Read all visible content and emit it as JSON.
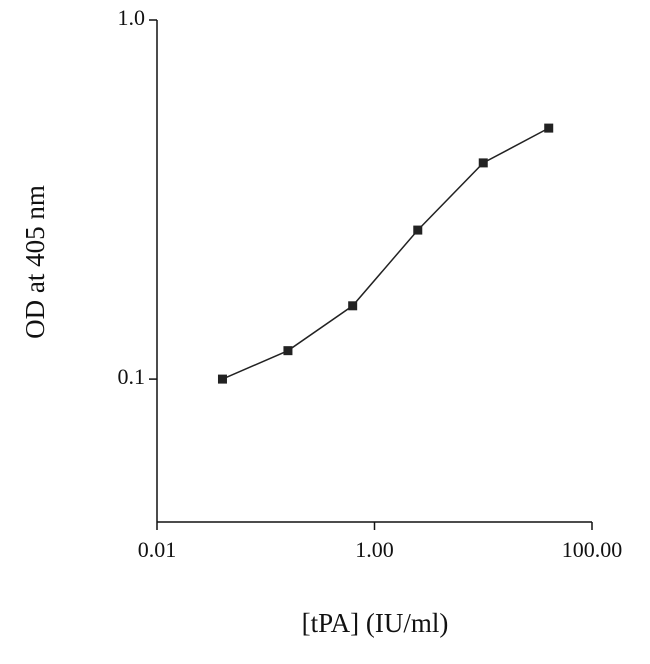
{
  "chart_data": {
    "type": "line",
    "x_label": "[tPA]  (IU/ml)",
    "y_label": "OD at 405 nm",
    "x": [
      0.04,
      0.16,
      0.63,
      2.5,
      10,
      40
    ],
    "series": [
      {
        "name": "OD",
        "color": "#222222",
        "values": [
          0.1,
          0.12,
          0.16,
          0.26,
          0.4,
          0.5
        ]
      }
    ],
    "xlim": [
      0.01,
      100
    ],
    "xticks": [
      0.01,
      {
        "value": 1,
        "label": "1.00"
      },
      {
        "value": 100,
        "label": "100.00"
      }
    ],
    "ylim": [
      0.04,
      1
    ],
    "yticks": [
      0.1,
      {
        "value": 1,
        "label": "1.0"
      }
    ],
    "xscale": "log",
    "yscale": "log",
    "grid": false
  }
}
